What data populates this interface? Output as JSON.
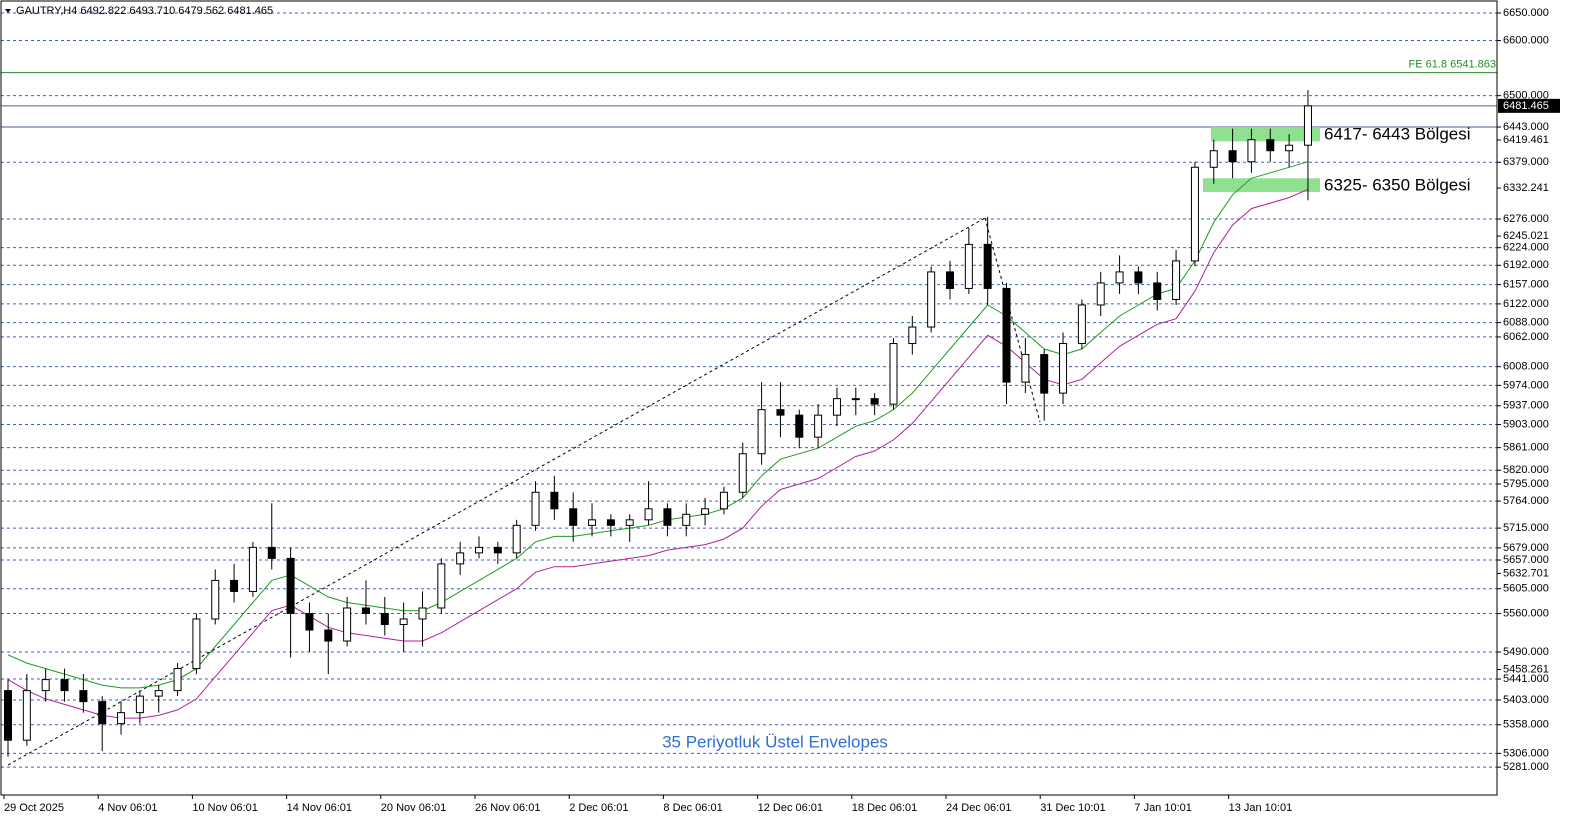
{
  "chart_data": {
    "type": "candlestick",
    "title": "GAUTRY,H4  6492.822 6493.710 6479.562 6481.465",
    "categories": [
      "29 Oct 2025",
      null,
      null,
      null,
      null,
      "4 Nov 06:01",
      null,
      null,
      null,
      null,
      "10 Nov 06:01",
      null,
      null,
      null,
      null,
      "14 Nov 06:01",
      null,
      null,
      null,
      null,
      "20 Nov 06:01",
      null,
      null,
      null,
      null,
      "26 Nov 06:01",
      null,
      null,
      null,
      null,
      "2 Dec 06:01",
      null,
      null,
      null,
      null,
      "8 Dec 06:01",
      null,
      null,
      null,
      null,
      "12 Dec 06:01",
      null,
      null,
      null,
      null,
      "18 Dec 06:01",
      null,
      null,
      null,
      null,
      "24 Dec 06:01",
      null,
      null,
      null,
      null,
      "31 Dec 10:01",
      null,
      null,
      null,
      null,
      "7 Jan 10:01",
      null,
      null,
      null,
      null,
      "13 Jan 10:01",
      null,
      null,
      null,
      null
    ],
    "open": [
      5420,
      5330,
      5420,
      5440,
      5420,
      5400,
      5360,
      5380,
      5410,
      5420,
      5460,
      5550,
      5620,
      5600,
      5680,
      5660,
      5560,
      5530,
      5510,
      5570,
      5560,
      5540,
      5550,
      5570,
      5650,
      5670,
      5680,
      5670,
      5720,
      5780,
      5750,
      5720,
      5730,
      5720,
      5730,
      5750,
      5720,
      5740,
      5750,
      5780,
      5850,
      5930,
      5920,
      5880,
      5920,
      5950,
      5950,
      5940,
      6050,
      6080,
      6180,
      6150,
      6230,
      6150,
      5980,
      6030,
      5960,
      6050,
      6120,
      6160,
      6180,
      6160,
      6130,
      6200,
      6370,
      6400,
      6380,
      6420,
      6400,
      6410
    ],
    "high": [
      5440,
      5450,
      5460,
      5460,
      5450,
      5410,
      5400,
      5420,
      5430,
      5470,
      5560,
      5640,
      5650,
      5690,
      5760,
      5680,
      5580,
      5560,
      5590,
      5620,
      5590,
      5580,
      5600,
      5660,
      5690,
      5700,
      5690,
      5730,
      5800,
      5810,
      5780,
      5760,
      5740,
      5740,
      5800,
      5760,
      5760,
      5770,
      5790,
      5870,
      5980,
      5980,
      5930,
      5940,
      5970,
      5970,
      5960,
      6060,
      6100,
      6190,
      6200,
      6260,
      6280,
      6160,
      6060,
      6040,
      6070,
      6130,
      6180,
      6210,
      6190,
      6180,
      6220,
      6380,
      6420,
      6440,
      6440,
      6440,
      6430,
      6510
    ],
    "low": [
      5300,
      5320,
      5400,
      5400,
      5380,
      5310,
      5340,
      5360,
      5380,
      5410,
      5450,
      5540,
      5580,
      5590,
      5640,
      5480,
      5490,
      5450,
      5500,
      5540,
      5520,
      5490,
      5500,
      5560,
      5630,
      5660,
      5650,
      5660,
      5710,
      5730,
      5690,
      5700,
      5700,
      5690,
      5720,
      5700,
      5700,
      5720,
      5740,
      5770,
      5830,
      5880,
      5860,
      5860,
      5900,
      5920,
      5920,
      5930,
      6030,
      6070,
      6130,
      6140,
      6120,
      5940,
      5960,
      5910,
      5940,
      6040,
      6100,
      6140,
      6140,
      6110,
      6120,
      6190,
      6340,
      6350,
      6360,
      6380,
      6370,
      6310
    ],
    "close": [
      5330,
      5420,
      5440,
      5420,
      5400,
      5360,
      5380,
      5410,
      5420,
      5460,
      5550,
      5620,
      5600,
      5680,
      5660,
      5560,
      5530,
      5510,
      5570,
      5560,
      5540,
      5550,
      5570,
      5650,
      5670,
      5680,
      5670,
      5720,
      5780,
      5750,
      5720,
      5730,
      5720,
      5730,
      5750,
      5720,
      5740,
      5750,
      5780,
      5850,
      5930,
      5920,
      5880,
      5920,
      5950,
      5950,
      5940,
      6050,
      6080,
      6180,
      6150,
      6230,
      6150,
      5980,
      6030,
      5960,
      6050,
      6120,
      6160,
      6180,
      6160,
      6130,
      6200,
      6370,
      6400,
      6380,
      6420,
      6400,
      6410,
      6481.465
    ],
    "up_color": "#ffffff",
    "down_color": "#000000",
    "wick_color": "#000000",
    "series": [
      {
        "color": "#1f9a1f",
        "values": [
          5485,
          5470,
          5460,
          5450,
          5440,
          5430,
          5425,
          5425,
          5430,
          5440,
          5460,
          5500,
          5540,
          5580,
          5620,
          5630,
          5610,
          5590,
          5580,
          5575,
          5570,
          5565,
          5565,
          5580,
          5600,
          5620,
          5640,
          5660,
          5690,
          5700,
          5700,
          5705,
          5710,
          5715,
          5720,
          5730,
          5735,
          5740,
          5750,
          5770,
          5810,
          5840,
          5850,
          5860,
          5880,
          5900,
          5910,
          5930,
          5960,
          6000,
          6040,
          6080,
          6120,
          6100,
          6070,
          6040,
          6030,
          6040,
          6070,
          6100,
          6120,
          6140,
          6150,
          6200,
          6270,
          6320,
          6350,
          6360,
          6370,
          6380
        ]
      },
      {
        "color": "#b0209e",
        "values": [
          5440,
          5420,
          5405,
          5395,
          5385,
          5375,
          5370,
          5370,
          5375,
          5385,
          5405,
          5445,
          5485,
          5525,
          5565,
          5575,
          5555,
          5535,
          5525,
          5520,
          5515,
          5510,
          5510,
          5525,
          5545,
          5565,
          5585,
          5605,
          5635,
          5645,
          5645,
          5650,
          5655,
          5660,
          5665,
          5675,
          5680,
          5685,
          5695,
          5715,
          5755,
          5785,
          5795,
          5805,
          5825,
          5845,
          5855,
          5875,
          5905,
          5945,
          5985,
          6025,
          6065,
          6045,
          6015,
          5985,
          5975,
          5985,
          6015,
          6045,
          6065,
          6085,
          6095,
          6145,
          6215,
          6265,
          6295,
          6305,
          6315,
          6330
        ]
      }
    ],
    "ylim": [
      5230.5,
      6673.6
    ],
    "yticks": [
      {
        "value": 6650,
        "label": "6650.000"
      },
      {
        "value": 6600,
        "label": "6600.000"
      },
      {
        "value": 6500,
        "label": "6500.000"
      },
      {
        "value": 6443,
        "label": "6443.000"
      },
      {
        "value": 6419.461,
        "label": "6419.461"
      },
      {
        "value": 6379,
        "label": "6379.000"
      },
      {
        "value": 6332.241,
        "label": "6332.241"
      },
      {
        "value": 6276,
        "label": "6276.000"
      },
      {
        "value": 6245.021,
        "label": "6245.021"
      },
      {
        "value": 6224,
        "label": "6224.000"
      },
      {
        "value": 6192,
        "label": "6192.000"
      },
      {
        "value": 6157,
        "label": "6157.000"
      },
      {
        "value": 6122,
        "label": "6122.000"
      },
      {
        "value": 6088,
        "label": "6088.000"
      },
      {
        "value": 6062,
        "label": "6062.000"
      },
      {
        "value": 6008,
        "label": "6008.000"
      },
      {
        "value": 5974,
        "label": "5974.000"
      },
      {
        "value": 5937,
        "label": "5937.000"
      },
      {
        "value": 5903,
        "label": "5903.000"
      },
      {
        "value": 5861,
        "label": "5861.000"
      },
      {
        "value": 5820,
        "label": "5820.000"
      },
      {
        "value": 5795,
        "label": "5795.000"
      },
      {
        "value": 5764,
        "label": "5764.000"
      },
      {
        "value": 5715,
        "label": "5715.000"
      },
      {
        "value": 5679,
        "label": "5679.000"
      },
      {
        "value": 5657,
        "label": "5657.000"
      },
      {
        "value": 5632.701,
        "label": "5632.701"
      },
      {
        "value": 5605,
        "label": "5605.000"
      },
      {
        "value": 5560,
        "label": "5560.000"
      },
      {
        "value": 5490,
        "label": "5490.000"
      },
      {
        "value": 5458.261,
        "label": "5458.261"
      },
      {
        "value": 5441,
        "label": "5441.000"
      },
      {
        "value": 5403,
        "label": "5403.000"
      },
      {
        "value": 5358,
        "label": "5358.000"
      },
      {
        "value": 5306,
        "label": "5306.000"
      },
      {
        "value": 5281,
        "label": "5281.000"
      }
    ],
    "levels": [
      6650,
      6600,
      6500,
      6379,
      6276,
      6224,
      6192,
      6157,
      6122,
      6088,
      6062,
      6008,
      5974,
      5937,
      5903,
      5861,
      5820,
      5795,
      5764,
      5715,
      5679,
      5657,
      5605,
      5560,
      5490,
      5441,
      5403,
      5358,
      5306,
      5281
    ],
    "level_color": "#3a62c8",
    "solid_levels": [
      6481.465,
      6443
    ],
    "solid_level_color": "#4a5f8f",
    "price_label": {
      "value": 6481.465,
      "label": "6481.465"
    },
    "fe_line": {
      "value": 6541.863,
      "label": "FE 61.8 6541.863",
      "color": "#2a8a2a"
    },
    "zones": [
      {
        "label": "6417- 6443 Bölgesi",
        "low": 6417,
        "high": 6443,
        "color": "#8fe08f"
      },
      {
        "label": "6325- 6350 Bölgesi",
        "low": 6325,
        "high": 6350,
        "color": "#8fe08f"
      }
    ],
    "annotation": "35 Periyotluk Üstel Envelopes"
  }
}
